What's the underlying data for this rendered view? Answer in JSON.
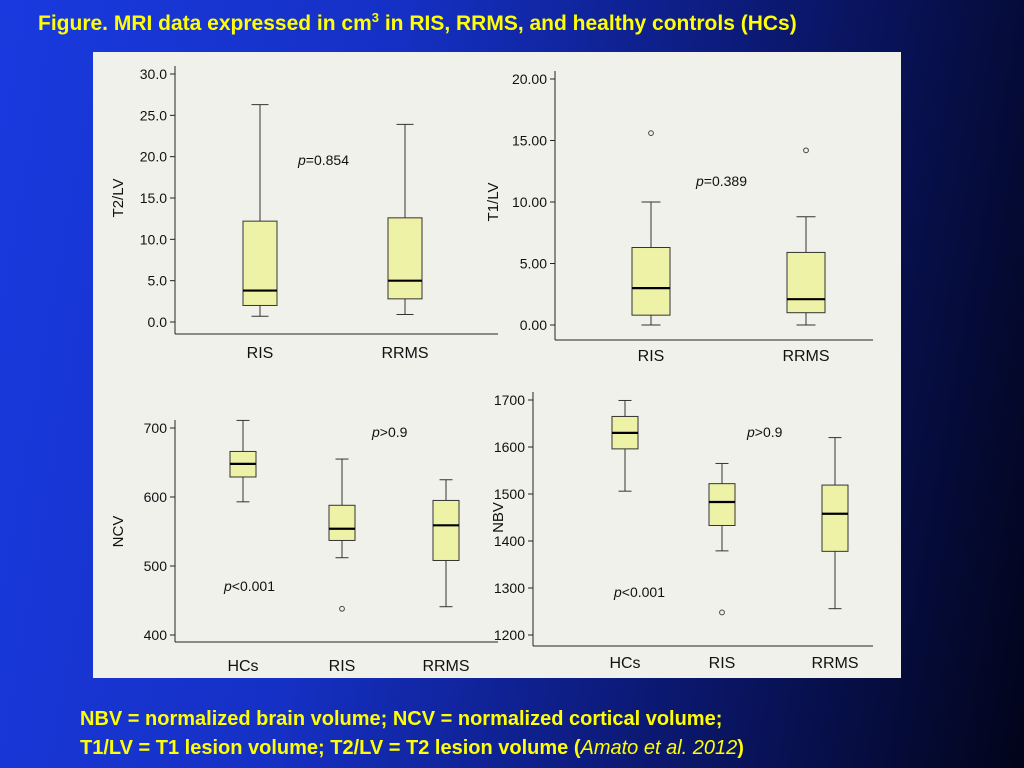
{
  "slide": {
    "title_main": "Figure. MRI data expressed in cm",
    "title_sup": "3",
    "title_rest": " in RIS, RRMS, and healthy controls (HCs)",
    "caption_line1": "NBV = normalized brain volume; NCV = normalized cortical volume;",
    "caption_line2_prefix": "T1/LV = T1 lesion volume; T2/LV = T2 lesion volume (",
    "caption_line2_cite": "Amato et al. 2012",
    "caption_line2_suffix": ")"
  },
  "colors": {
    "box_fill": "#eef2a6",
    "box_stroke": "#333333",
    "title_text": "#ffff00"
  },
  "chart_data": [
    {
      "type": "boxplot",
      "ylabel": "T2/LV",
      "ylim": [
        0,
        30
      ],
      "yticks": [
        "0.0",
        "5.0",
        "10.0",
        "15.0",
        "20.0",
        "25.0",
        "30.0"
      ],
      "categories": [
        "RIS",
        "RRMS"
      ],
      "annotations": [
        {
          "label": "p",
          "text": "=0.854"
        }
      ],
      "boxes": [
        {
          "name": "RIS",
          "min": 0.7,
          "q1": 2.0,
          "median": 3.8,
          "q3": 12.2,
          "max": 26.3,
          "outliers": []
        },
        {
          "name": "RRMS",
          "min": 0.9,
          "q1": 2.8,
          "median": 5.0,
          "q3": 12.6,
          "max": 23.9,
          "outliers": []
        }
      ]
    },
    {
      "type": "boxplot",
      "ylabel": "T1/LV",
      "ylim": [
        0,
        20
      ],
      "yticks": [
        "0.00",
        "5.00",
        "10.00",
        "15.00",
        "20.00"
      ],
      "categories": [
        "RIS",
        "RRMS"
      ],
      "annotations": [
        {
          "label": "p",
          "text": "=0.389"
        }
      ],
      "boxes": [
        {
          "name": "RIS",
          "min": 0.0,
          "q1": 0.8,
          "median": 3.0,
          "q3": 6.3,
          "max": 10.0,
          "outliers": [
            15.6
          ]
        },
        {
          "name": "RRMS",
          "min": 0.0,
          "q1": 1.0,
          "median": 2.1,
          "q3": 5.9,
          "max": 8.8,
          "outliers": [
            14.2
          ]
        }
      ]
    },
    {
      "type": "boxplot",
      "ylabel": "NCV",
      "ylim": [
        400,
        700
      ],
      "yticks": [
        "400",
        "500",
        "600",
        "700"
      ],
      "categories": [
        "HCs",
        "RIS",
        "RRMS"
      ],
      "annotations": [
        {
          "label": "p",
          "text": ">0.9"
        },
        {
          "label": "p",
          "text": "<0.001"
        }
      ],
      "boxes": [
        {
          "name": "HCs",
          "min": 593,
          "q1": 629,
          "median": 648,
          "q3": 666,
          "max": 711,
          "outliers": []
        },
        {
          "name": "RIS",
          "min": 512,
          "q1": 537,
          "median": 554,
          "q3": 588,
          "max": 655,
          "outliers": [
            438
          ]
        },
        {
          "name": "RRMS",
          "min": 441,
          "q1": 508,
          "median": 559,
          "q3": 595,
          "max": 625,
          "outliers": []
        }
      ]
    },
    {
      "type": "boxplot",
      "ylabel": "NBV",
      "ylim": [
        1200,
        1700
      ],
      "yticks": [
        "1200",
        "1300",
        "1400",
        "1500",
        "1600",
        "1700"
      ],
      "categories": [
        "HCs",
        "RIS",
        "RRMS"
      ],
      "annotations": [
        {
          "label": "p",
          "text": ">0.9"
        },
        {
          "label": "p",
          "text": "<0.001"
        }
      ],
      "boxes": [
        {
          "name": "HCs",
          "min": 1506,
          "q1": 1596,
          "median": 1630,
          "q3": 1665,
          "max": 1699,
          "outliers": []
        },
        {
          "name": "RIS",
          "min": 1379,
          "q1": 1433,
          "median": 1483,
          "q3": 1522,
          "max": 1565,
          "outliers": [
            1248
          ]
        },
        {
          "name": "RRMS",
          "min": 1256,
          "q1": 1378,
          "median": 1458,
          "q3": 1519,
          "max": 1620,
          "outliers": []
        }
      ]
    }
  ]
}
